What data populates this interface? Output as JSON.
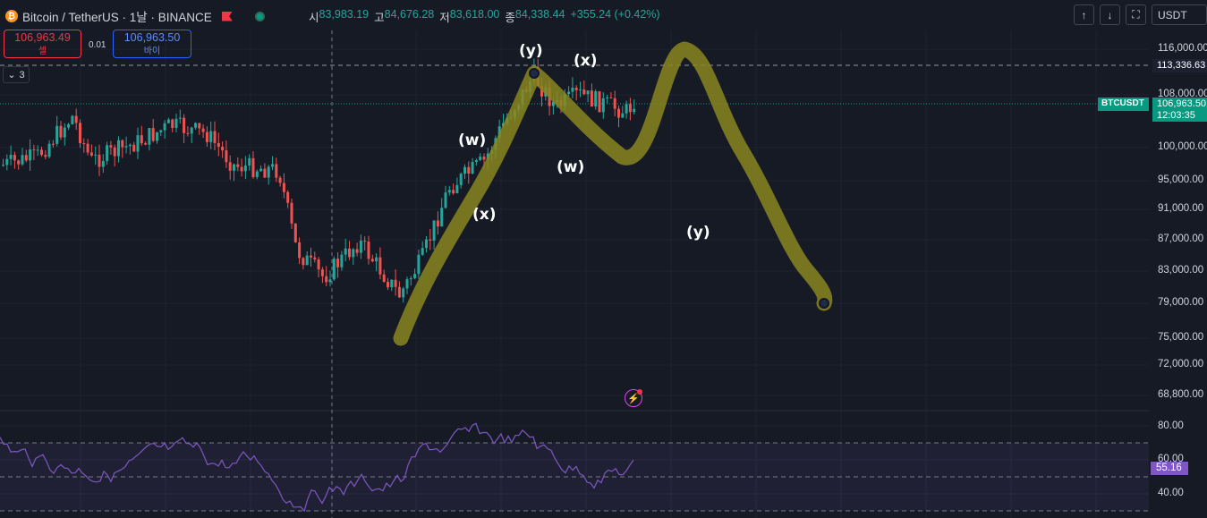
{
  "header": {
    "symbol_title": "Bitcoin / TetherUS · 1날 · BINANCE",
    "ohlc": [
      {
        "label": "시",
        "value": "83,983.19"
      },
      {
        "label": "고",
        "value": "84,676.28"
      },
      {
        "label": "저",
        "value": "83,618.00"
      },
      {
        "label": "종",
        "value": "84,338.44"
      }
    ],
    "change": "+355.24 (+0.42%)"
  },
  "trade": {
    "sell_price": "106,963.49",
    "sell_label": "셀",
    "spread": "0.01",
    "buy_price": "106,963.50",
    "buy_label": "바이"
  },
  "indicators_collapse": "3",
  "toolbar": {
    "currency": "USDT",
    "up_icon": "arrow-up-icon",
    "down_icon": "arrow-down-icon",
    "fullscreen_icon": "fullscreen-icon"
  },
  "price_scale": [
    "116,000.00",
    "108,000.00",
    "100,000.00",
    "95,000.00",
    "91,000.00",
    "87,000.00",
    "83,000.00",
    "79,000.00",
    "75,000.00",
    "72,000.00",
    "68,800.00"
  ],
  "dashed_level": "113,336.63",
  "last_price": {
    "symbol": "BTCUSDT",
    "price": "106,963.50",
    "countdown": "12:03:35"
  },
  "rsi": {
    "value": "55.16",
    "scale": [
      "80.00",
      "60.00",
      "40.00"
    ]
  },
  "wave_labels": [
    "(y)",
    "(x)",
    "(w)",
    "(x)",
    "(w)",
    "(y)"
  ],
  "colors": {
    "up": "#26a69a",
    "down": "#ef5350",
    "wave_path": "#8a8620",
    "rsi_line": "#7e57c2",
    "background": "#161a25"
  }
}
